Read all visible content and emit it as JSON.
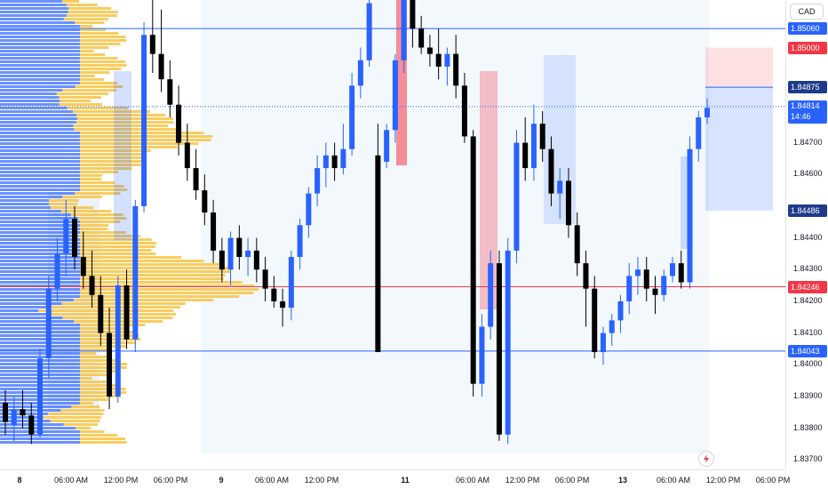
{
  "symbol": {
    "currency": "CAD"
  },
  "price_axis": {
    "ticks": [
      "1.85060",
      "1.85000",
      "1.84875",
      "1.84814",
      "1.84700",
      "1.84600",
      "1.84486",
      "1.84400",
      "1.84300",
      "1.84246",
      "1.84200",
      "1.84100",
      "1.84043",
      "1.84000",
      "1.83900",
      "1.83800",
      "1.83700"
    ],
    "tags": [
      {
        "label": "1.85060",
        "price": 1.8506,
        "color": "#2962ff"
      },
      {
        "label": "1.85000",
        "price": 1.85,
        "color": "#f23645"
      },
      {
        "label": "1.84875",
        "price": 1.84875,
        "color": "#1e3a8a"
      },
      {
        "label": "1.84814",
        "sublabel": "14:46",
        "price": 1.84814,
        "color": "#2962ff"
      },
      {
        "label": "1.84486",
        "price": 1.84486,
        "color": "#1e3a8a"
      },
      {
        "label": "1.84246",
        "price": 1.84246,
        "color": "#f23645"
      },
      {
        "label": "1.84043",
        "price": 1.84043,
        "color": "#2962ff"
      }
    ]
  },
  "time_axis": {
    "labels": [
      {
        "text": "8",
        "day": true
      },
      {
        "text": "06:00 AM",
        "day": false
      },
      {
        "text": "12:00 PM",
        "day": false
      },
      {
        "text": "06:00 PM",
        "day": false
      },
      {
        "text": "9",
        "day": true
      },
      {
        "text": "06:00 AM",
        "day": false
      },
      {
        "text": "12:00 PM",
        "day": false
      },
      {
        "text": "11",
        "day": true
      },
      {
        "text": "06:00 AM",
        "day": false
      },
      {
        "text": "12:00 PM",
        "day": false
      },
      {
        "text": "06:00 PM",
        "day": false
      },
      {
        "text": "13",
        "day": true
      },
      {
        "text": "06:00 AM",
        "day": false
      },
      {
        "text": "12:00 PM",
        "day": false
      },
      {
        "text": "06:00 PM",
        "day": false
      }
    ]
  },
  "levels": [
    {
      "price": 1.8506,
      "color": "#2962ff"
    },
    {
      "price": 1.84246,
      "color": "#f23645"
    },
    {
      "price": 1.84043,
      "color": "#2962ff"
    }
  ],
  "last_price": 1.84814,
  "position": {
    "entry": 1.84875,
    "target": 1.85,
    "stop": 1.84486
  },
  "chart_data": {
    "type": "candlestick",
    "y_range": [
      1.8367,
      1.8515
    ],
    "candles": [
      [
        1.8388,
        1.8392,
        1.8378,
        1.8382
      ],
      [
        1.8381,
        1.839,
        1.8376,
        1.8386
      ],
      [
        1.8386,
        1.8392,
        1.838,
        1.8384
      ],
      [
        1.8384,
        1.8388,
        1.8375,
        1.8378
      ],
      [
        1.8378,
        1.8405,
        1.8377,
        1.8402
      ],
      [
        1.8402,
        1.8428,
        1.8396,
        1.8424
      ],
      [
        1.8424,
        1.844,
        1.842,
        1.8435
      ],
      [
        1.8435,
        1.8452,
        1.8428,
        1.8446
      ],
      [
        1.8446,
        1.845,
        1.843,
        1.8434
      ],
      [
        1.8434,
        1.8442,
        1.8424,
        1.8428
      ],
      [
        1.8428,
        1.8436,
        1.8418,
        1.8422
      ],
      [
        1.8422,
        1.8428,
        1.8406,
        1.841
      ],
      [
        1.841,
        1.8418,
        1.8386,
        1.839
      ],
      [
        1.839,
        1.8428,
        1.8388,
        1.8425
      ],
      [
        1.8425,
        1.843,
        1.8405,
        1.8408
      ],
      [
        1.8408,
        1.8452,
        1.8404,
        1.845
      ],
      [
        1.845,
        1.8508,
        1.8448,
        1.8504
      ],
      [
        1.8504,
        1.852,
        1.8492,
        1.8498
      ],
      [
        1.8498,
        1.8512,
        1.8486,
        1.849
      ],
      [
        1.849,
        1.8496,
        1.8478,
        1.8482
      ],
      [
        1.8482,
        1.8488,
        1.8466,
        1.847
      ],
      [
        1.847,
        1.8476,
        1.8458,
        1.8462
      ],
      [
        1.8462,
        1.8468,
        1.8452,
        1.8455
      ],
      [
        1.8455,
        1.846,
        1.8444,
        1.8448
      ],
      [
        1.8448,
        1.8452,
        1.8432,
        1.8436
      ],
      [
        1.8436,
        1.844,
        1.8426,
        1.843
      ],
      [
        1.843,
        1.8442,
        1.8425,
        1.844
      ],
      [
        1.844,
        1.8444,
        1.843,
        1.8434
      ],
      [
        1.8434,
        1.844,
        1.8428,
        1.8436
      ],
      [
        1.8436,
        1.844,
        1.8426,
        1.843
      ],
      [
        1.843,
        1.8434,
        1.842,
        1.8424
      ],
      [
        1.8424,
        1.8428,
        1.8418,
        1.842
      ],
      [
        1.842,
        1.8424,
        1.8412,
        1.8418
      ],
      [
        1.8418,
        1.8436,
        1.8414,
        1.8434
      ],
      [
        1.8434,
        1.8446,
        1.843,
        1.8444
      ],
      [
        1.8444,
        1.8456,
        1.844,
        1.8454
      ],
      [
        1.8454,
        1.8466,
        1.845,
        1.8462
      ],
      [
        1.8462,
        1.847,
        1.8456,
        1.8466
      ],
      [
        1.8466,
        1.847,
        1.8458,
        1.8462
      ],
      [
        1.8462,
        1.8476,
        1.846,
        1.8468
      ],
      [
        1.8468,
        1.8492,
        1.8466,
        1.8488
      ],
      [
        1.8488,
        1.85,
        1.8484,
        1.8496
      ],
      [
        1.8496,
        1.852,
        1.8494,
        1.8514
      ],
      [
        1.8466,
        1.8476,
        1.8404,
        1.8404
      ],
      [
        1.8464,
        1.8476,
        1.8462,
        1.8474
      ],
      [
        1.8474,
        1.8498,
        1.847,
        1.8496
      ],
      [
        1.8496,
        1.852,
        1.8492,
        1.8516
      ],
      [
        1.8516,
        1.852,
        1.85,
        1.8506
      ],
      [
        1.8506,
        1.851,
        1.8498,
        1.85
      ],
      [
        1.85,
        1.8504,
        1.8494,
        1.8498
      ],
      [
        1.8498,
        1.8506,
        1.849,
        1.8494
      ],
      [
        1.8494,
        1.85,
        1.8488,
        1.8498
      ],
      [
        1.8498,
        1.8504,
        1.8484,
        1.8488
      ],
      [
        1.8488,
        1.8492,
        1.847,
        1.8472
      ],
      [
        1.8472,
        1.8474,
        1.839,
        1.8394
      ],
      [
        1.8394,
        1.8416,
        1.839,
        1.8412
      ],
      [
        1.8412,
        1.8436,
        1.8408,
        1.8432
      ],
      [
        1.8432,
        1.8436,
        1.8376,
        1.8378
      ],
      [
        1.8378,
        1.844,
        1.8375,
        1.8436
      ],
      [
        1.8436,
        1.8474,
        1.8432,
        1.847
      ],
      [
        1.847,
        1.8478,
        1.8458,
        1.8462
      ],
      [
        1.8462,
        1.8482,
        1.8458,
        1.8476
      ],
      [
        1.8476,
        1.848,
        1.8464,
        1.8468
      ],
      [
        1.8468,
        1.8472,
        1.845,
        1.8454
      ],
      [
        1.8454,
        1.8462,
        1.8446,
        1.8458
      ],
      [
        1.8458,
        1.8462,
        1.844,
        1.8444
      ],
      [
        1.8444,
        1.8448,
        1.8428,
        1.8432
      ],
      [
        1.8432,
        1.8436,
        1.8412,
        1.8424
      ],
      [
        1.8424,
        1.8428,
        1.8402,
        1.8404
      ],
      [
        1.8404,
        1.8412,
        1.84,
        1.841
      ],
      [
        1.841,
        1.8416,
        1.8406,
        1.8414
      ],
      [
        1.8414,
        1.8422,
        1.841,
        1.842
      ],
      [
        1.842,
        1.8432,
        1.8416,
        1.8428
      ],
      [
        1.8428,
        1.8434,
        1.8422,
        1.843
      ],
      [
        1.843,
        1.8434,
        1.842,
        1.8424
      ],
      [
        1.8424,
        1.8428,
        1.8416,
        1.8422
      ],
      [
        1.8422,
        1.843,
        1.842,
        1.8428
      ],
      [
        1.8428,
        1.8434,
        1.8426,
        1.8432
      ],
      [
        1.8432,
        1.8436,
        1.8424,
        1.8426
      ],
      [
        1.8426,
        1.8472,
        1.8424,
        1.8468
      ],
      [
        1.8468,
        1.848,
        1.8464,
        1.8478
      ],
      [
        1.8478,
        1.8484,
        1.8476,
        1.8481
      ]
    ]
  }
}
